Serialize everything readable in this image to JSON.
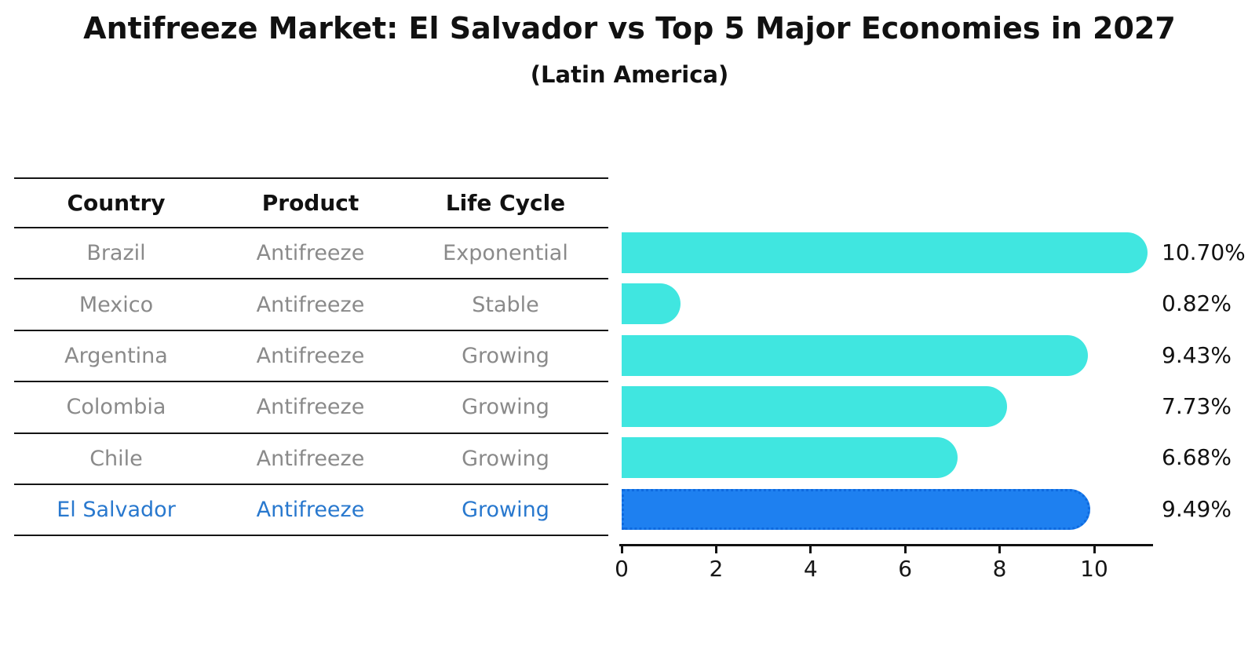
{
  "header": {
    "title": "Antifreeze Market: El Salvador vs Top 5 Major Economies in 2027",
    "subtitle": "(Latin America)"
  },
  "table": {
    "headers": [
      "Country",
      "Product",
      "Life Cycle"
    ],
    "rows": [
      {
        "country": "Brazil",
        "product": "Antifreeze",
        "life_cycle": "Exponential",
        "highlight": false
      },
      {
        "country": "Mexico",
        "product": "Antifreeze",
        "life_cycle": "Stable",
        "highlight": false
      },
      {
        "country": "Argentina",
        "product": "Antifreeze",
        "life_cycle": "Growing",
        "highlight": false
      },
      {
        "country": "Colombia",
        "product": "Antifreeze",
        "life_cycle": "Growing",
        "highlight": false
      },
      {
        "country": "Chile",
        "product": "Antifreeze",
        "life_cycle": "Growing",
        "highlight": false
      },
      {
        "country": "El Salvador",
        "product": "Antifreeze",
        "life_cycle": "Growing",
        "highlight": true
      }
    ]
  },
  "chart_data": {
    "type": "bar",
    "orientation": "horizontal",
    "title": "Antifreeze Market: El Salvador vs Top 5 Major Economies in 2027",
    "subtitle": "(Latin America)",
    "categories": [
      "Brazil",
      "Mexico",
      "Argentina",
      "Colombia",
      "Chile",
      "El Salvador"
    ],
    "values": [
      10.7,
      0.82,
      9.43,
      7.73,
      6.68,
      9.49
    ],
    "value_labels": [
      "10.70%",
      "0.82%",
      "9.43%",
      "7.73%",
      "6.68%",
      "9.49%"
    ],
    "xticks": [
      0,
      2,
      4,
      6,
      8,
      10
    ],
    "xlim": [
      0,
      11.2
    ],
    "xlabel": "",
    "ylabel": "",
    "grid": false,
    "legend": false,
    "highlight_index": 5,
    "colors": {
      "bar": "#40E6E0",
      "highlight_bar": "#1E80F0",
      "highlight_border": "#0E6ADF",
      "highlight_text": "#2878CE",
      "row_text": "#8A8A8A",
      "axis_text": "#111111"
    }
  }
}
